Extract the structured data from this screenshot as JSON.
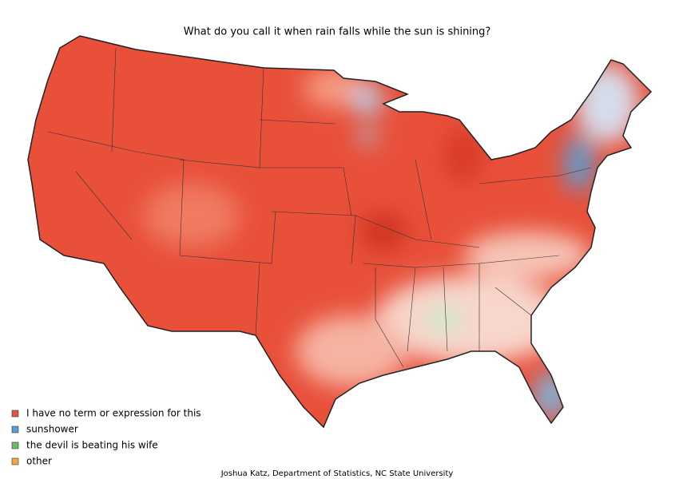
{
  "title": "What do you call it when rain falls while the sun is shining?",
  "legend": [
    {
      "label": "I have no term or expression for this",
      "color": "#e0533f"
    },
    {
      "label": "sunshower",
      "color": "#5a9fd4"
    },
    {
      "label": "the devil is beating his wife",
      "color": "#6abf5e"
    },
    {
      "label": "other",
      "color": "#f5a742"
    }
  ],
  "credit": "Joshua Katz, Department of Statistics, NC State University"
}
